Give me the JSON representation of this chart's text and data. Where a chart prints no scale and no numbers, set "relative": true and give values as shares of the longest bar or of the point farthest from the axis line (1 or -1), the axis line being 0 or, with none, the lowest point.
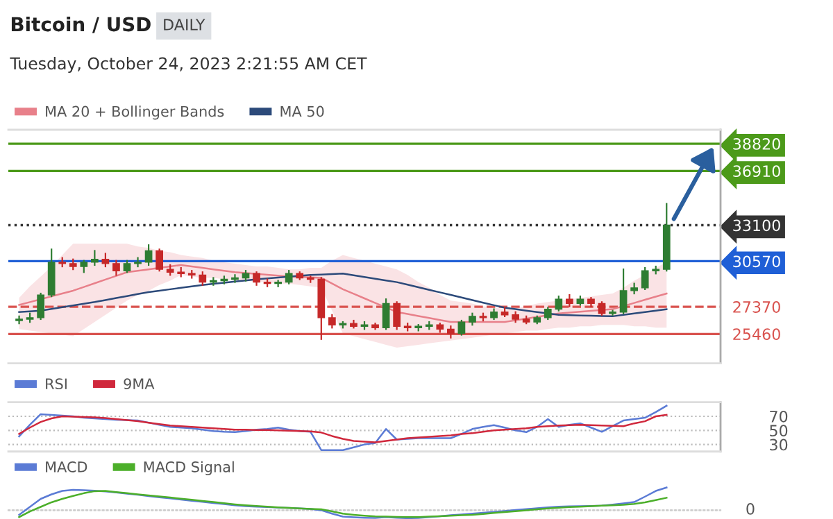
{
  "chart_data": [
    {
      "type": "candlestick",
      "title": "Bitcoin / USD",
      "subtitle": "DAILY",
      "annotations": [
        "Tuesday, October 24, 2023 2:21:55 AM CET"
      ],
      "categories": [
        null,
        null,
        null,
        null,
        null,
        null,
        null,
        null,
        null,
        null,
        null,
        null,
        null,
        null,
        null,
        null,
        null,
        null,
        null,
        null,
        null,
        null,
        null,
        null,
        null,
        null,
        null,
        null,
        null,
        null,
        null,
        null,
        null,
        null,
        null,
        null,
        null,
        null,
        null,
        null,
        null,
        null,
        null,
        null,
        null,
        null,
        null,
        null,
        null,
        null,
        null,
        null,
        null,
        null,
        null,
        null,
        null,
        null,
        null,
        null,
        null
      ],
      "ohlc": [
        [
          26400,
          26700,
          26200,
          26500
        ],
        [
          26500,
          26900,
          26300,
          26600
        ],
        [
          26600,
          28300,
          26500,
          28200
        ],
        [
          28200,
          31400,
          28100,
          30500
        ],
        [
          30500,
          30800,
          30200,
          30400
        ],
        [
          30400,
          30700,
          30000,
          30200
        ],
        [
          30200,
          30600,
          29800,
          30500
        ],
        [
          30500,
          31300,
          30300,
          30700
        ],
        [
          30700,
          31100,
          30200,
          30400
        ],
        [
          30400,
          30600,
          29600,
          29900
        ],
        [
          29900,
          30600,
          29800,
          30400
        ],
        [
          30400,
          30800,
          30200,
          30500
        ],
        [
          30500,
          31700,
          30300,
          31300
        ],
        [
          31300,
          31400,
          29900,
          30000
        ],
        [
          30000,
          30300,
          29600,
          29800
        ],
        [
          29800,
          30100,
          29500,
          29700
        ],
        [
          29700,
          29900,
          29400,
          29600
        ],
        [
          29600,
          29800,
          28900,
          29100
        ],
        [
          29100,
          29400,
          28900,
          29200
        ],
        [
          29200,
          29500,
          29000,
          29300
        ],
        [
          29300,
          29600,
          29100,
          29400
        ],
        [
          29400,
          29900,
          29200,
          29700
        ],
        [
          29700,
          29800,
          28900,
          29100
        ],
        [
          29100,
          29300,
          28800,
          29000
        ],
        [
          29000,
          29200,
          28800,
          29100
        ],
        [
          29100,
          29900,
          29000,
          29700
        ],
        [
          29700,
          29800,
          29300,
          29400
        ],
        [
          29400,
          29500,
          29100,
          29300
        ],
        [
          29300,
          29400,
          25100,
          26600
        ],
        [
          26600,
          26800,
          25900,
          26100
        ],
        [
          26100,
          26300,
          25900,
          26200
        ],
        [
          26200,
          26400,
          25900,
          26000
        ],
        [
          26000,
          26300,
          25800,
          26100
        ],
        [
          26100,
          26200,
          25800,
          25900
        ],
        [
          25900,
          27900,
          25800,
          27600
        ],
        [
          27600,
          27700,
          25800,
          26000
        ],
        [
          26000,
          26200,
          25700,
          25900
        ],
        [
          25900,
          26100,
          25700,
          26000
        ],
        [
          26000,
          26300,
          25800,
          26100
        ],
        [
          26100,
          26200,
          25600,
          25800
        ],
        [
          25800,
          26000,
          25200,
          25500
        ],
        [
          25500,
          26400,
          25400,
          26300
        ],
        [
          26300,
          26900,
          26100,
          26700
        ],
        [
          26700,
          26900,
          26400,
          26600
        ],
        [
          26600,
          27200,
          26500,
          27000
        ],
        [
          27000,
          27300,
          26700,
          26800
        ],
        [
          26800,
          27000,
          26300,
          26500
        ],
        [
          26500,
          26700,
          26200,
          26300
        ],
        [
          26300,
          26700,
          26200,
          26600
        ],
        [
          26600,
          27300,
          26500,
          27200
        ],
        [
          27200,
          28100,
          27100,
          27900
        ],
        [
          27900,
          28200,
          27400,
          27600
        ],
        [
          27600,
          28100,
          27500,
          27900
        ],
        [
          27900,
          28000,
          27400,
          27600
        ],
        [
          27600,
          27700,
          26800,
          26900
        ],
        [
          26900,
          27100,
          26800,
          27000
        ],
        [
          27000,
          30000,
          26900,
          28500
        ],
        [
          28500,
          29000,
          28300,
          28700
        ],
        [
          28700,
          30100,
          28600,
          29900
        ],
        [
          29900,
          30200,
          29700,
          30000
        ],
        [
          30000,
          34600,
          29900,
          33100
        ]
      ],
      "colors": [
        "#2e7d32",
        "#2e7d32",
        "#2e7d32",
        "#2e7d32",
        "#c62828",
        "#c62828",
        "#2e7d32",
        "#2e7d32",
        "#c62828",
        "#c62828",
        "#2e7d32",
        "#2e7d32",
        "#2e7d32",
        "#c62828",
        "#c62828",
        "#c62828",
        "#c62828",
        "#c62828",
        "#2e7d32",
        "#2e7d32",
        "#2e7d32",
        "#2e7d32",
        "#c62828",
        "#c62828",
        "#2e7d32",
        "#2e7d32",
        "#c62828",
        "#c62828",
        "#c62828",
        "#c62828",
        "#2e7d32",
        "#c62828",
        "#2e7d32",
        "#c62828",
        "#2e7d32",
        "#c62828",
        "#c62828",
        "#2e7d32",
        "#2e7d32",
        "#c62828",
        "#c62828",
        "#2e7d32",
        "#2e7d32",
        "#c62828",
        "#2e7d32",
        "#c62828",
        "#c62828",
        "#c62828",
        "#2e7d32",
        "#2e7d32",
        "#2e7d32",
        "#c62828",
        "#2e7d32",
        "#c62828",
        "#c62828",
        "#2e7d32",
        "#2e7d32",
        "#2e7d32",
        "#2e7d32",
        "#2e7d32",
        "#2e7d32"
      ],
      "series": [
        {
          "name": "MA 20 + Bollinger Bands",
          "type": "line",
          "color": "#e8808a",
          "values": [
            27500,
            27700,
            27900,
            28100,
            28300,
            28500,
            28760,
            29020,
            29280,
            29540,
            29800,
            29900,
            30000,
            30100,
            30200,
            30300,
            30200,
            30100,
            30000,
            29900,
            29800,
            29740,
            29680,
            29620,
            29560,
            29500,
            29470,
            29430,
            29400,
            29000,
            28600,
            28280,
            27960,
            27640,
            27320,
            27000,
            26860,
            26720,
            26580,
            26440,
            26300,
            26300,
            26300,
            26300,
            26300,
            26300,
            26420,
            26540,
            26660,
            26780,
            26900,
            26960,
            27020,
            27080,
            27140,
            27200,
            27420,
            27640,
            27860,
            28080,
            28300
          ],
          "lower": [
            25800,
            25700,
            25600,
            25500,
            25400,
            25300,
            25800,
            26300,
            26800,
            27300,
            27800,
            28200,
            28500,
            28900,
            29200,
            29600,
            29500,
            29400,
            29400,
            29300,
            29200,
            29200,
            29100,
            29100,
            29000,
            29000,
            28900,
            28800,
            28700,
            27100,
            25500,
            25300,
            25100,
            24900,
            24700,
            24500,
            24600,
            24700,
            24800,
            24900,
            25000,
            25100,
            25200,
            25300,
            25400,
            25500,
            25600,
            25700,
            25700,
            25800,
            25900,
            25900,
            26000,
            26000,
            26100,
            26100,
            26100,
            26000,
            26000,
            25900,
            25900
          ],
          "upper": [
            28000,
            28800,
            29500,
            30200,
            31000,
            31800,
            31800,
            31800,
            31800,
            31800,
            31800,
            31600,
            31500,
            31300,
            31200,
            31000,
            30900,
            30800,
            30600,
            30500,
            30400,
            30300,
            30200,
            30200,
            30100,
            30000,
            30000,
            30100,
            30100,
            30600,
            31000,
            30800,
            30600,
            30400,
            30200,
            30000,
            29600,
            29100,
            28700,
            28200,
            27800,
            27700,
            27600,
            27400,
            27300,
            27200,
            27300,
            27400,
            27600,
            27700,
            27800,
            27900,
            28000,
            28100,
            28200,
            28300,
            28700,
            29200,
            29600,
            30100,
            30500
          ]
        },
        {
          "name": "MA 50",
          "type": "line",
          "color": "#2c4a7a",
          "values": [
            27000,
            27050,
            27100,
            27220,
            27340,
            27460,
            27580,
            27700,
            27840,
            27980,
            28120,
            28260,
            28400,
            28500,
            28600,
            28700,
            28800,
            28900,
            28980,
            29060,
            29140,
            29220,
            29300,
            29360,
            29420,
            29480,
            29540,
            29600,
            29630,
            29670,
            29700,
            29580,
            29460,
            29340,
            29220,
            29100,
            28920,
            28740,
            28560,
            28380,
            28200,
            28020,
            27840,
            27660,
            27480,
            27300,
            27200,
            27100,
            27000,
            26900,
            26800,
            26780,
            26760,
            26740,
            26720,
            26700,
            26800,
            26900,
            27000,
            27100,
            27200
          ]
        }
      ],
      "ref_lines": [
        {
          "axis": "y",
          "value": 38820,
          "color": "#4c9a1a",
          "line_style": "solid"
        },
        {
          "axis": "y",
          "value": 36910,
          "color": "#4c9a1a",
          "line_style": "solid"
        },
        {
          "axis": "y",
          "value": 33100,
          "color": "#333333",
          "line_style": "dotted"
        },
        {
          "axis": "y",
          "value": 30570,
          "color": "#1f5fd6",
          "line_style": "solid"
        },
        {
          "axis": "y",
          "value": 27370,
          "color": "#d9534f",
          "line_style": "dashed"
        },
        {
          "axis": "y",
          "value": 25460,
          "color": "#d9534f",
          "line_style": "solid"
        }
      ],
      "ylim": [
        23400,
        39800
      ],
      "yticks": [
        38820,
        36910,
        33100,
        30570,
        27370,
        25460
      ],
      "tick_labels": "y",
      "legend": "top left"
    },
    {
      "type": "line",
      "categories": [
        null,
        null,
        null,
        null,
        null,
        null,
        null,
        null,
        null,
        null,
        null,
        null,
        null,
        null,
        null,
        null,
        null,
        null,
        null,
        null,
        null,
        null,
        null,
        null,
        null,
        null,
        null,
        null,
        null,
        null,
        null,
        null,
        null,
        null,
        null,
        null,
        null,
        null,
        null,
        null,
        null,
        null,
        null,
        null,
        null,
        null,
        null,
        null,
        null,
        null,
        null,
        null,
        null,
        null,
        null,
        null,
        null,
        null,
        null,
        null,
        null
      ],
      "series": [
        {
          "name": "RSI",
          "color": "#5b7bd5",
          "values": [
            41.5,
            58,
            73,
            72,
            71,
            70,
            68,
            67,
            66,
            65,
            64.5,
            64,
            61,
            58,
            55,
            54,
            53,
            51,
            49,
            48,
            47.5,
            49,
            51,
            52,
            54,
            51,
            49,
            48,
            22,
            22,
            22,
            26,
            30,
            32,
            52,
            37,
            38,
            39,
            39,
            39,
            39,
            45,
            52,
            55,
            57.5,
            54,
            50,
            47.5,
            55,
            66,
            55,
            58,
            60,
            54,
            48,
            56,
            64,
            66,
            68,
            76,
            85
          ]
        },
        {
          "name": "9MA",
          "color": "#d0283c",
          "values": [
            45,
            54,
            62,
            67,
            70,
            69.5,
            69,
            68.5,
            67.5,
            66,
            64.5,
            63,
            61,
            59,
            57,
            56,
            55,
            54,
            53,
            52,
            51,
            51,
            50.5,
            50.5,
            50,
            49.5,
            49,
            48.5,
            47,
            42,
            38,
            35,
            34,
            33,
            35,
            37,
            39,
            40,
            41,
            42,
            43,
            45,
            46,
            48,
            50,
            51,
            52,
            53,
            55,
            56,
            57,
            57.5,
            58,
            57.5,
            57,
            56.5,
            56,
            60,
            63,
            70,
            72
          ]
        }
      ],
      "ylim": [
        20,
        90
      ],
      "yticks": [
        70,
        50,
        30
      ],
      "grid": "y",
      "tick_labels": "y",
      "legend": "top left"
    },
    {
      "type": "line",
      "relative": true,
      "categories": [
        null,
        null,
        null,
        null,
        null,
        null,
        null,
        null,
        null,
        null,
        null,
        null,
        null,
        null,
        null,
        null,
        null,
        null,
        null,
        null,
        null,
        null,
        null,
        null,
        null,
        null,
        null,
        null,
        null,
        null,
        null,
        null,
        null,
        null,
        null,
        null,
        null,
        null,
        null,
        null,
        null,
        null,
        null,
        null,
        null,
        null,
        null,
        null,
        null,
        null,
        null,
        null,
        null,
        null,
        null,
        null,
        null,
        null,
        null,
        null,
        null
      ],
      "series": [
        {
          "name": "MACD",
          "color": "#5b7bd5",
          "values": [
            -0.2,
            0.15,
            0.5,
            0.7,
            0.85,
            0.9,
            0.88,
            0.86,
            0.83,
            0.78,
            0.73,
            0.68,
            0.62,
            0.57,
            0.52,
            0.47,
            0.42,
            0.37,
            0.32,
            0.27,
            0.22,
            0.18,
            0.16,
            0.14,
            0.12,
            0.1,
            0.08,
            0.06,
            0.0,
            -0.15,
            -0.28,
            -0.31,
            -0.33,
            -0.34,
            -0.3,
            -0.33,
            -0.35,
            -0.34,
            -0.3,
            -0.26,
            -0.22,
            -0.19,
            -0.15,
            -0.11,
            -0.07,
            -0.03,
            0.01,
            0.05,
            0.09,
            0.13,
            0.16,
            0.17,
            0.18,
            0.19,
            0.2,
            0.25,
            0.3,
            0.36,
            0.6,
            0.85,
            1
          ]
        },
        {
          "name": "MACD Signal",
          "color": "#4caf2a",
          "values": [
            -0.3,
            -0.05,
            0.15,
            0.35,
            0.5,
            0.63,
            0.75,
            0.84,
            0.85,
            0.8,
            0.75,
            0.7,
            0.65,
            0.61,
            0.56,
            0.51,
            0.46,
            0.41,
            0.36,
            0.31,
            0.26,
            0.22,
            0.19,
            0.16,
            0.13,
            0.1,
            0.08,
            0.06,
            0.04,
            -0.05,
            -0.15,
            -0.2,
            -0.24,
            -0.27,
            -0.28,
            -0.29,
            -0.3,
            -0.3,
            -0.28,
            -0.26,
            -0.24,
            -0.22,
            -0.2,
            -0.16,
            -0.12,
            -0.08,
            -0.04,
            0.0,
            0.04,
            0.08,
            0.11,
            0.14,
            0.16,
            0.18,
            0.2,
            0.22,
            0.24,
            0.28,
            0.35,
            0.45,
            0.55
          ]
        }
      ],
      "ref_lines": [
        {
          "axis": "y",
          "value": 0,
          "label": "0",
          "color": "#cccccc",
          "line_style": "dotted"
        }
      ],
      "tick_labels": false,
      "legend": "top left"
    }
  ]
}
